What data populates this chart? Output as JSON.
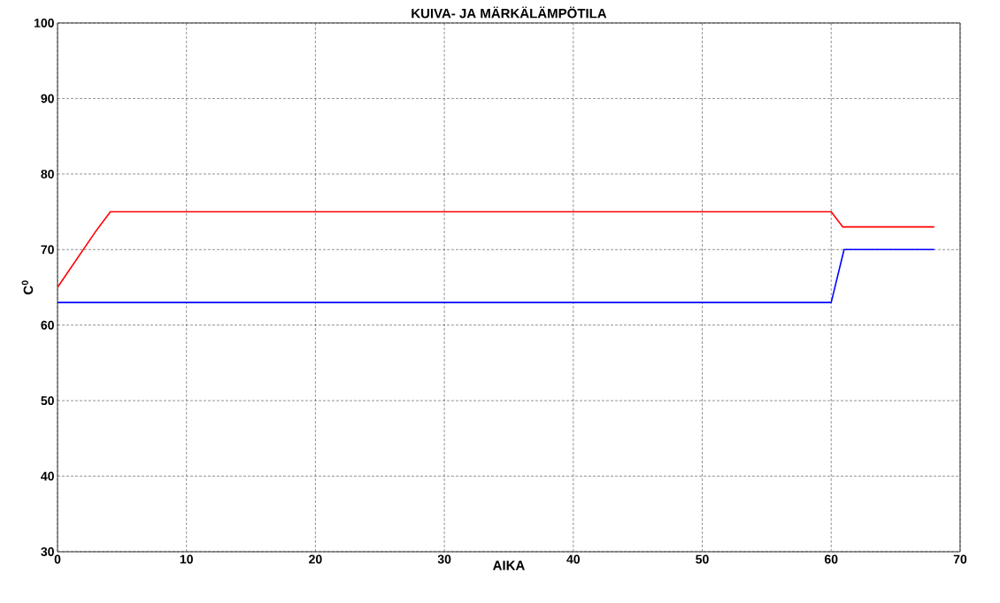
{
  "chart_data": {
    "type": "line",
    "title": "KUIVA- JA MÄRKÄLÄMPÖTILA",
    "xlabel": "AIKA",
    "ylabel": "C$^{0}$",
    "series": [
      {
        "color": "#ff0000",
        "x": [
          0,
          1,
          2,
          3,
          4.1,
          60,
          60.9,
          68
        ],
        "values": [
          65,
          67.5,
          70,
          72.5,
          75,
          75,
          73,
          73
        ]
      },
      {
        "color": "#0000ff",
        "x": [
          0,
          60,
          61,
          68
        ],
        "values": [
          63,
          63,
          70,
          70
        ]
      }
    ],
    "xlim": [
      0,
      70
    ],
    "ylim": [
      30,
      100
    ],
    "xticks": [
      0,
      10,
      20,
      30,
      40,
      50,
      60,
      70
    ],
    "yticks": [
      30,
      40,
      50,
      60,
      70,
      80,
      90,
      100
    ],
    "grid": true,
    "marker": "none",
    "line_style": "solid"
  }
}
